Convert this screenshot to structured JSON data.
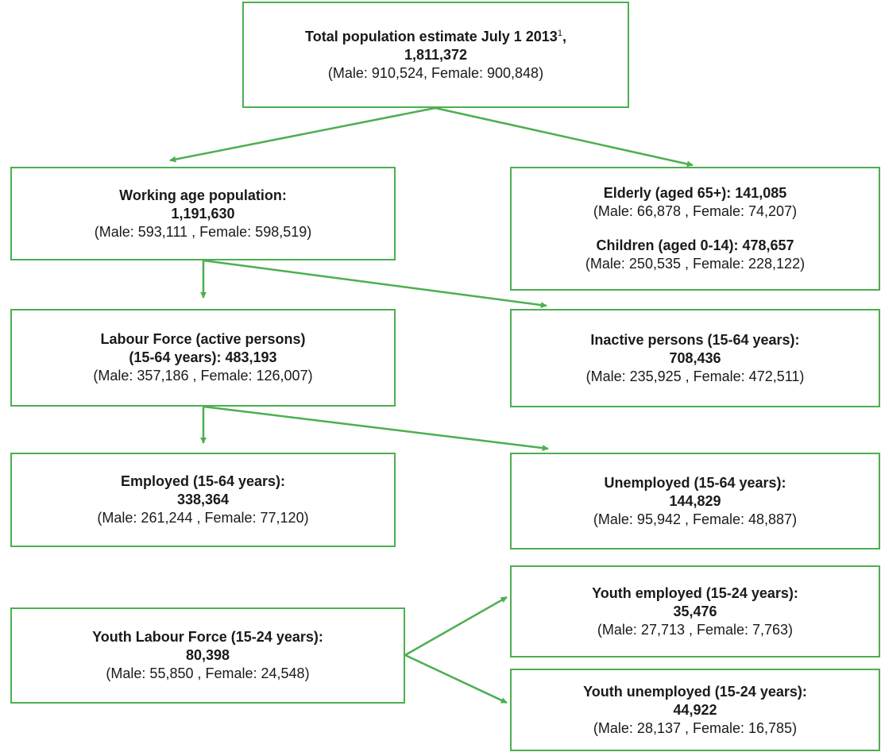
{
  "colors": {
    "accent": "#4caf50"
  },
  "nodes": {
    "total": {
      "title": "Total population estimate July 1 2013",
      "footnote": "1",
      "title_suffix": ",",
      "value": "1,811,372",
      "breakdown": "(Male: 910,524, Female: 900,848)"
    },
    "working_age": {
      "title": "Working age population:",
      "value": "1,191,630",
      "breakdown": "(Male: 593,111 , Female: 598,519)"
    },
    "elderly": {
      "title": "Elderly (aged 65+): 141,085",
      "breakdown": "(Male: 66,878 , Female: 74,207)"
    },
    "children": {
      "title": "Children (aged 0-14): 478,657",
      "breakdown": "(Male: 250,535 , Female: 228,122)"
    },
    "labour_force": {
      "title": "Labour Force (active persons)",
      "value": "(15-64 years): 483,193",
      "breakdown": "(Male: 357,186 , Female: 126,007)"
    },
    "inactive": {
      "title": "Inactive persons (15-64 years):",
      "value": "708,436",
      "breakdown": "(Male: 235,925 , Female: 472,511)"
    },
    "employed": {
      "title": "Employed (15-64 years):",
      "value": "338,364",
      "breakdown": "(Male: 261,244 , Female: 77,120)"
    },
    "unemployed": {
      "title": "Unemployed (15-64 years):",
      "value": "144,829",
      "breakdown": "(Male: 95,942 , Female: 48,887)"
    },
    "youth_labour_force": {
      "title": "Youth Labour Force (15-24 years):",
      "value": "80,398",
      "breakdown": "(Male: 55,850 , Female: 24,548)"
    },
    "youth_employed": {
      "title": "Youth employed (15-24 years):",
      "value": "35,476",
      "breakdown": "(Male: 27,713 , Female: 7,763)"
    },
    "youth_unemployed": {
      "title": "Youth unemployed (15-24 years):",
      "value": "44,922",
      "breakdown": "(Male: 28,137 , Female: 16,785)"
    }
  }
}
